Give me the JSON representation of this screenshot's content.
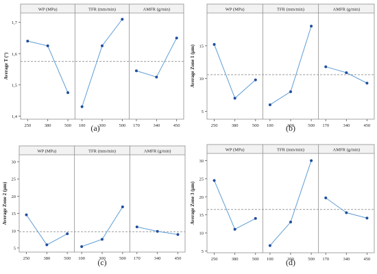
{
  "chart_data": [
    {
      "type": "line",
      "panel_label": "(a)",
      "ylabel": "Average T (°)",
      "ylim": [
        1.39,
        1.73
      ],
      "yticks": [
        "1,4",
        "1,5",
        "1,6",
        "1,7"
      ],
      "ytick_values": [
        1.4,
        1.5,
        1.6,
        1.7
      ],
      "mean": 1.575,
      "factors": [
        {
          "name": "WP (MPa)",
          "x": [
            "250",
            "380",
            "500"
          ],
          "values": [
            1.64,
            1.625,
            1.475
          ]
        },
        {
          "name": "TFR (mm/min)",
          "x": [
            "100",
            "300",
            "500"
          ],
          "values": [
            1.43,
            1.625,
            1.71
          ]
        },
        {
          "name": "AMFR (g/min)",
          "x": [
            "170",
            "340",
            "450"
          ],
          "values": [
            1.545,
            1.525,
            1.65
          ]
        }
      ]
    },
    {
      "type": "line",
      "panel_label": "(b)",
      "ylabel": "Average Zone 1 (µm)",
      "ylim": [
        3.8,
        20
      ],
      "yticks": [
        "5",
        "10",
        "15"
      ],
      "ytick_values": [
        5,
        10,
        15
      ],
      "mean": 10.6,
      "factors": [
        {
          "name": "WP (MPa)",
          "x": [
            "250",
            "380",
            "500"
          ],
          "values": [
            15.2,
            7.0,
            9.8
          ]
        },
        {
          "name": "TFR (mm/min)",
          "x": [
            "100",
            "300",
            "500"
          ],
          "values": [
            6.0,
            8.0,
            18.0
          ]
        },
        {
          "name": "AMFR (g/min)",
          "x": [
            "170",
            "340",
            "450"
          ],
          "values": [
            11.8,
            10.9,
            9.3
          ]
        }
      ]
    },
    {
      "type": "line",
      "panel_label": "(c)",
      "ylabel": "Average Zone 2 (µm)",
      "ylim": [
        3.8,
        32
      ],
      "yticks": [
        "5",
        "10",
        "15",
        "20",
        "25",
        "30"
      ],
      "ytick_values": [
        5,
        10,
        15,
        20,
        25,
        30
      ],
      "mean": 9.7,
      "factors": [
        {
          "name": "WP (MPa)",
          "x": [
            "250",
            "380",
            "500"
          ],
          "values": [
            14.6,
            5.9,
            9.1
          ]
        },
        {
          "name": "TFR (mm/min)",
          "x": [
            "100",
            "300",
            "500"
          ],
          "values": [
            5.4,
            7.5,
            16.9
          ]
        },
        {
          "name": "AMFR (g/min)",
          "x": [
            "170",
            "340",
            "450"
          ],
          "values": [
            11.1,
            9.8,
            8.9
          ]
        }
      ]
    },
    {
      "type": "line",
      "panel_label": "(d)",
      "ylabel": "Average Zone 3 (µm)",
      "ylim": [
        4.5,
        32
      ],
      "yticks": [
        "5",
        "10",
        "15",
        "20",
        "25",
        "30"
      ],
      "ytick_values": [
        5,
        10,
        15,
        20,
        25,
        30
      ],
      "mean": 16.5,
      "factors": [
        {
          "name": "WP (MPa)",
          "x": [
            "250",
            "380",
            "500"
          ],
          "values": [
            24.5,
            11.0,
            14.0
          ]
        },
        {
          "name": "TFR (mm/min)",
          "x": [
            "100",
            "300",
            "500"
          ],
          "values": [
            6.5,
            13.0,
            30.0
          ]
        },
        {
          "name": "AMFR (g/min)",
          "x": [
            "170",
            "340",
            "450"
          ],
          "values": [
            19.7,
            15.6,
            14.1
          ]
        }
      ]
    }
  ],
  "colors": {
    "line": "#5b9bd5",
    "marker": "#1f4e9c",
    "mean": "#9a9a9a",
    "header": "#f2f2f2",
    "border": "#8c8c8c"
  }
}
